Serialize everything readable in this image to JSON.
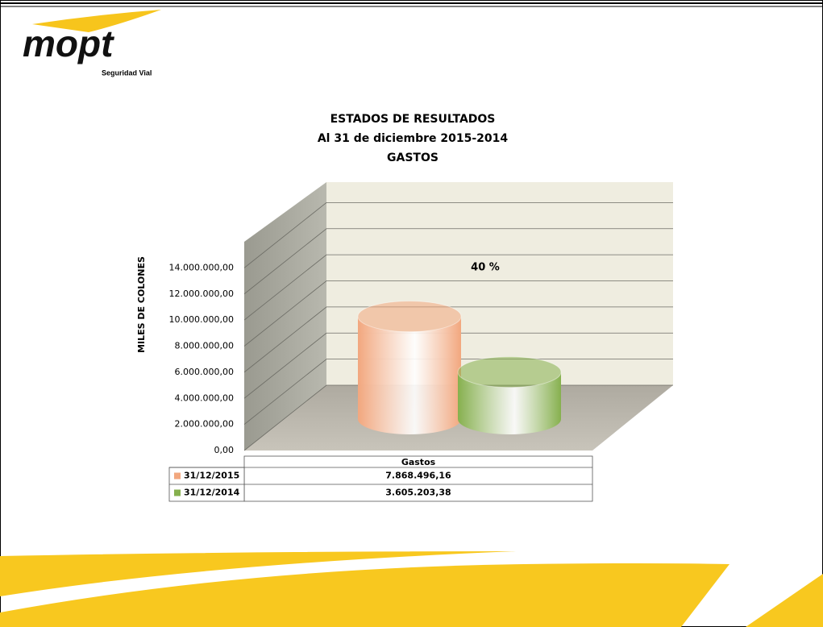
{
  "header": {
    "logo": "mopt",
    "tagline": "Seguridad Vial"
  },
  "chart_data": {
    "type": "bar3d",
    "title": [
      "ESTADOS  DE RESULTADOS",
      "Al 31 de diciembre 2015-2014",
      "GASTOS"
    ],
    "y_label": "MILES  DE  COLONES",
    "annotation": "40 %",
    "categories": [
      "Gastos"
    ],
    "series": [
      {
        "name": "31/12/2015",
        "color": "#f2a77e",
        "values": [
          7868496.16
        ],
        "value_labels": [
          "7.868.496,16"
        ]
      },
      {
        "name": "31/12/2014",
        "color": "#86b04e",
        "values": [
          3605203.38
        ],
        "value_labels": [
          "3.605.203,38"
        ]
      }
    ],
    "ylim": [
      0,
      16000000
    ],
    "yticks": [
      {
        "value": 0,
        "label": "0,00"
      },
      {
        "value": 2000000,
        "label": "2.000.000,00"
      },
      {
        "value": 4000000,
        "label": "4.000.000,00"
      },
      {
        "value": 6000000,
        "label": "6.000.000,00"
      },
      {
        "value": 8000000,
        "label": "8.000.000,00"
      },
      {
        "value": 10000000,
        "label": "10.000.000,00"
      },
      {
        "value": 12000000,
        "label": "12.000.000,00"
      },
      {
        "value": 14000000,
        "label": "14.000.000,00"
      }
    ],
    "grid": true
  }
}
